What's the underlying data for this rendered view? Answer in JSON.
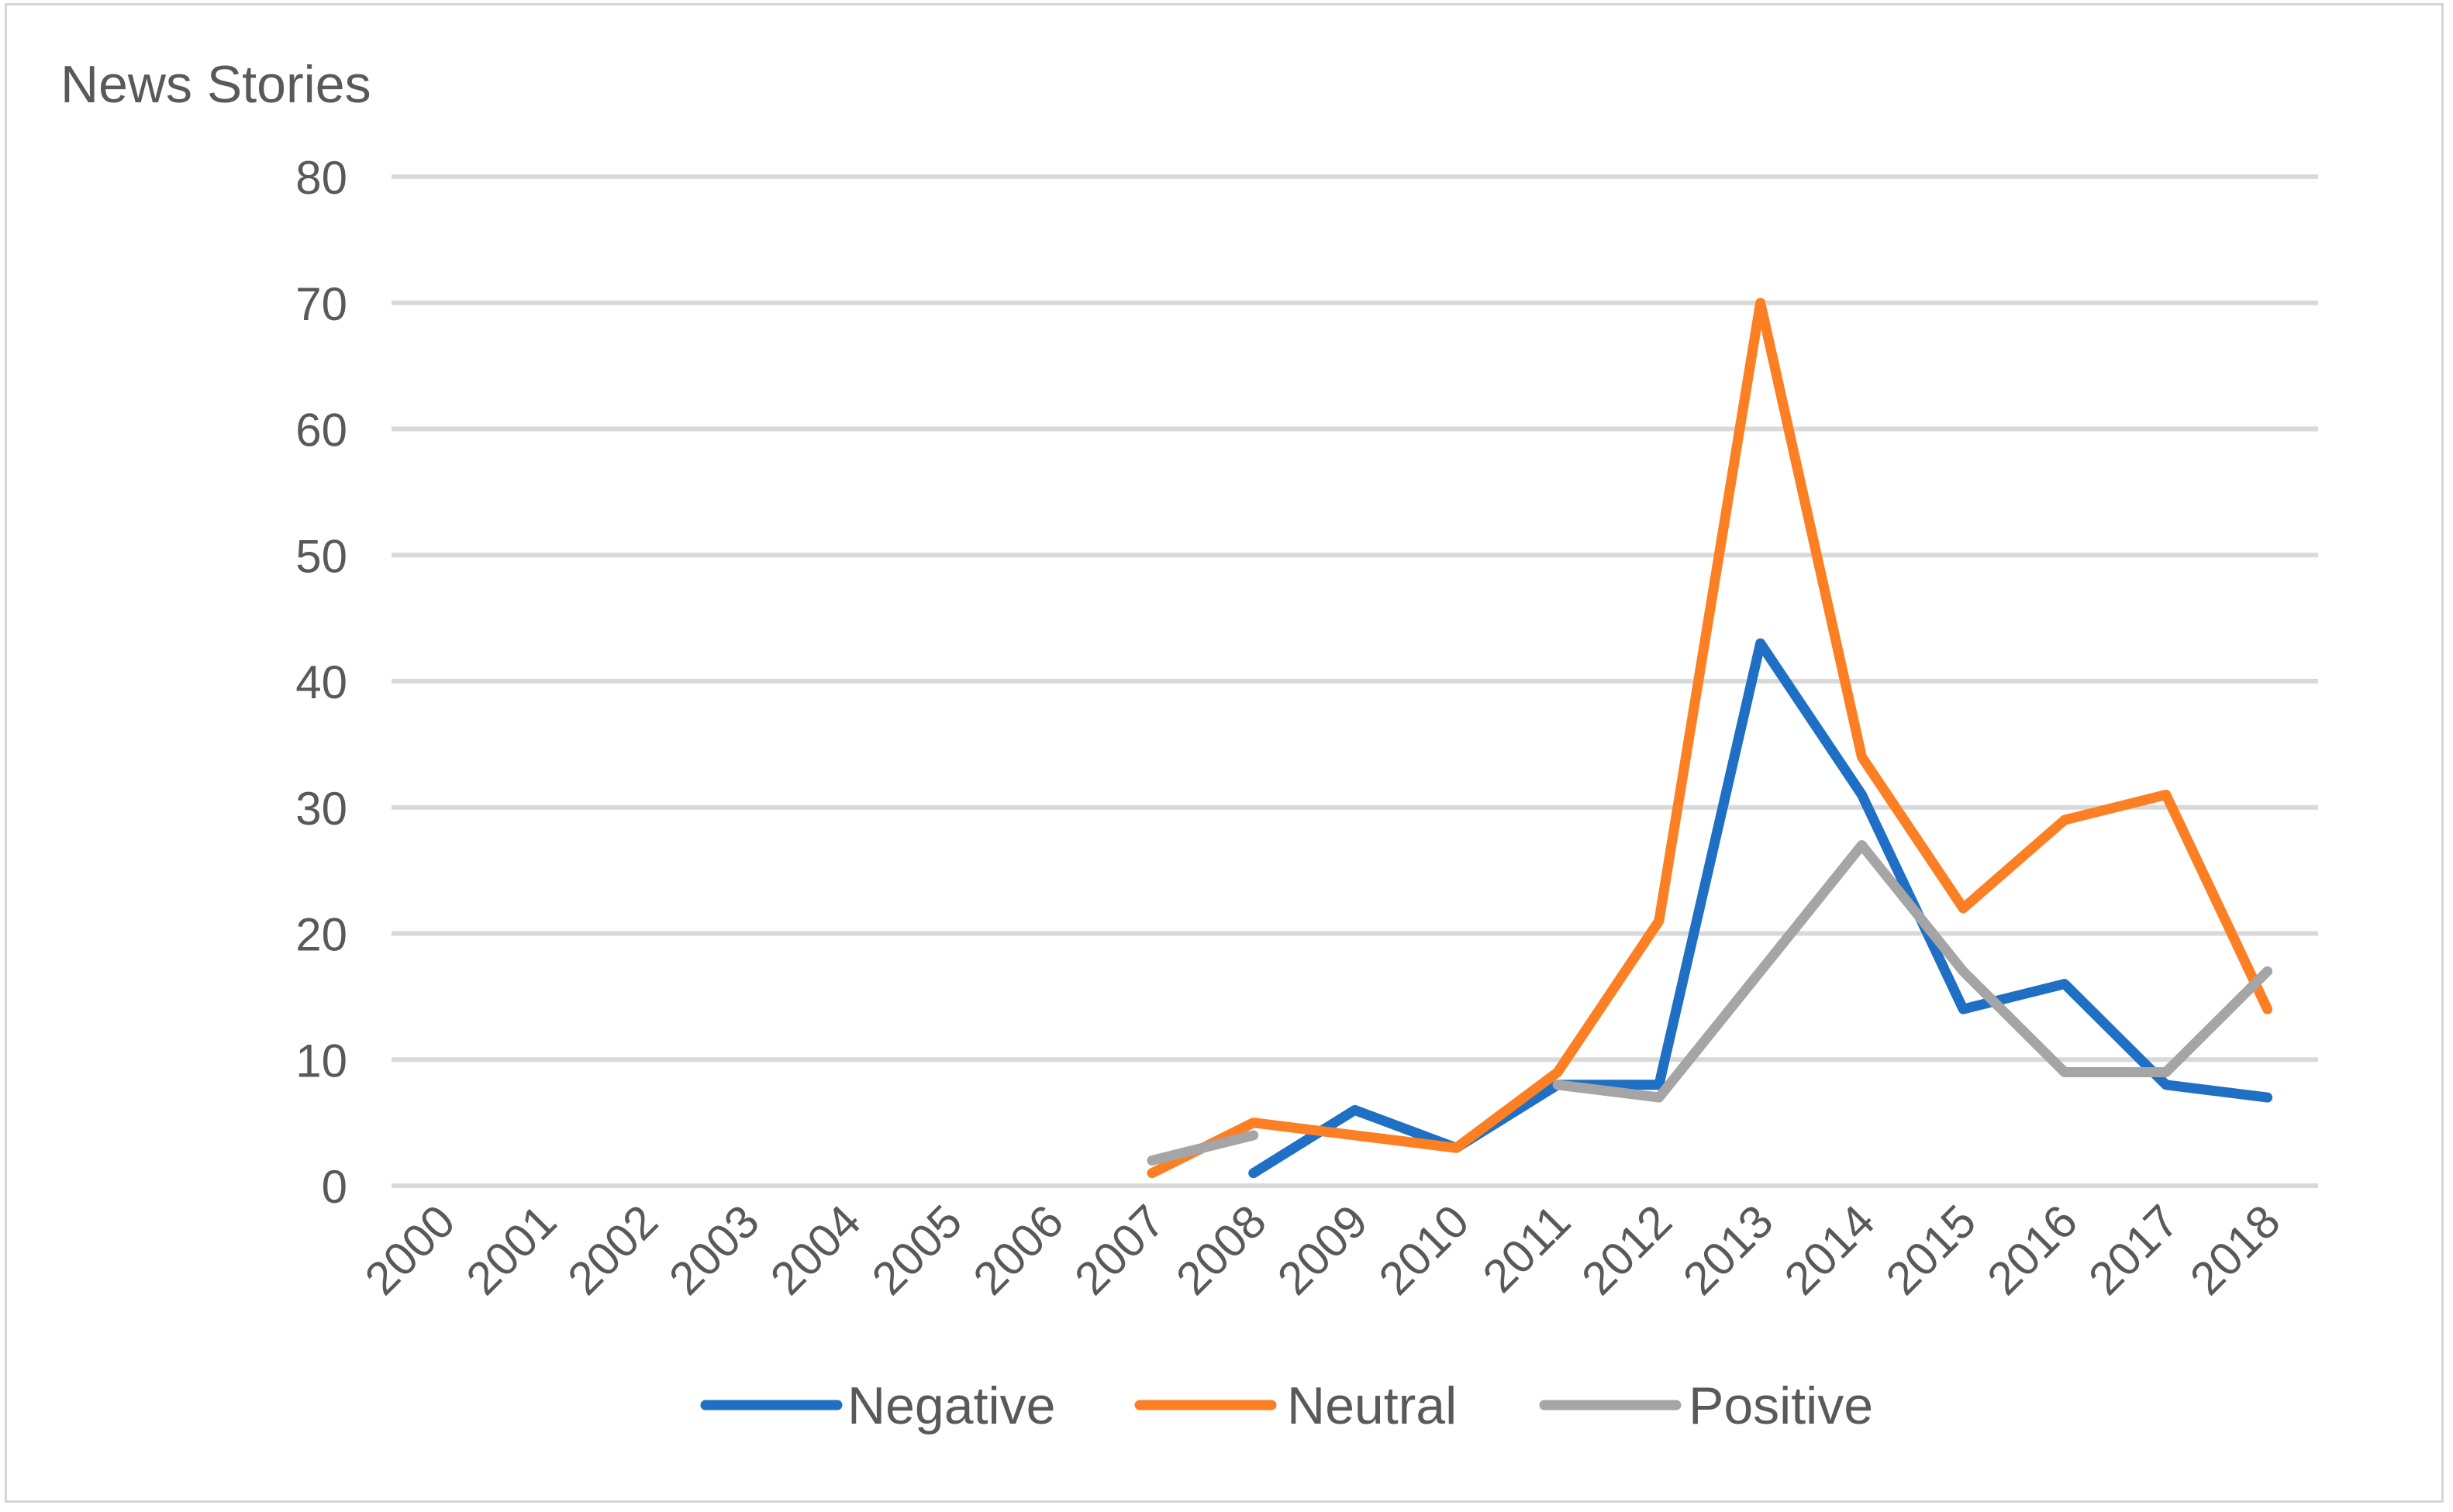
{
  "chart_data": {
    "type": "line",
    "title": "",
    "ylabel": "News Stories",
    "xlabel": "",
    "ylim": [
      0,
      80
    ],
    "yticks": [
      0,
      10,
      20,
      30,
      40,
      50,
      60,
      70,
      80
    ],
    "grid": true,
    "legend_position": "bottom",
    "categories": [
      "2000",
      "2001",
      "2002",
      "2003",
      "2004",
      "2005",
      "2006",
      "2007",
      "2008",
      "2009",
      "2010",
      "2011",
      "2012",
      "2013",
      "2014",
      "2015",
      "2016",
      "2017",
      "2018"
    ],
    "series": [
      {
        "name": "Negative",
        "color": "#1f6fc5",
        "values": [
          null,
          null,
          null,
          null,
          null,
          null,
          null,
          null,
          1,
          6,
          3,
          8,
          8,
          43,
          31,
          14,
          16,
          8,
          7
        ]
      },
      {
        "name": "Neutral",
        "color": "#fd7f23",
        "values": [
          null,
          null,
          null,
          null,
          null,
          null,
          null,
          1,
          5,
          4,
          3,
          9,
          21,
          70,
          34,
          22,
          29,
          31,
          14
        ]
      },
      {
        "name": "Positive",
        "color": "#a5a5a5",
        "values": [
          null,
          null,
          null,
          null,
          null,
          null,
          null,
          2,
          4,
          null,
          null,
          8,
          7,
          17,
          27,
          17,
          9,
          9,
          17
        ]
      }
    ]
  }
}
